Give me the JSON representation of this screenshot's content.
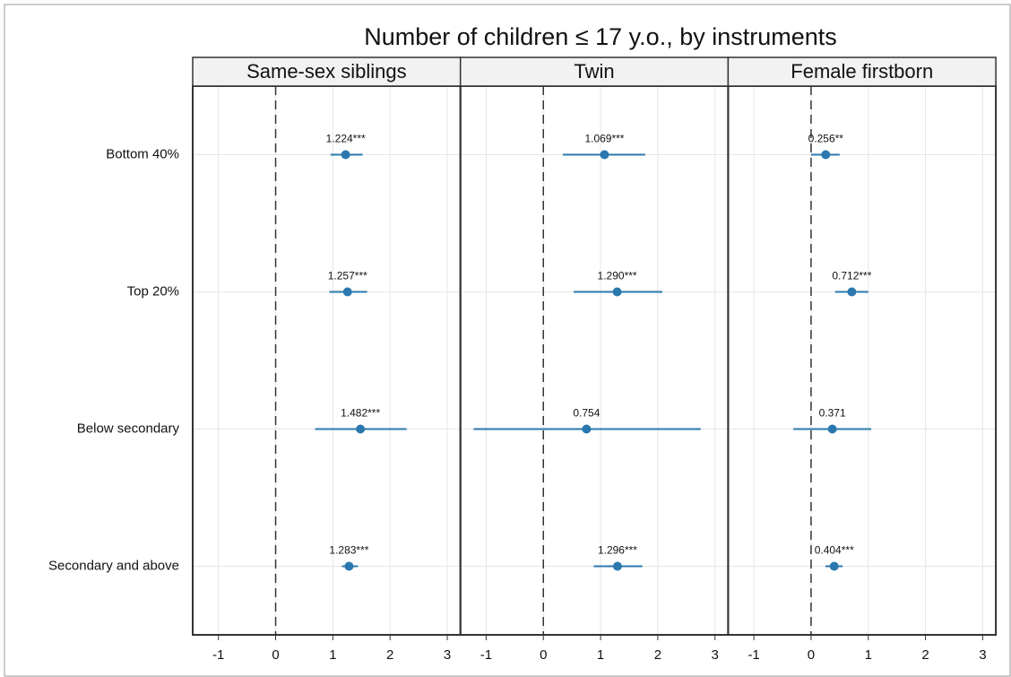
{
  "title": "Number of children ≤ 17 y.o., by instruments",
  "categories": [
    "Bottom 40%",
    "Top 20%",
    "Below secondary",
    "Secondary and above"
  ],
  "chart_data": [
    {
      "type": "errorbar",
      "title": "Same-sex siblings",
      "color": "#2a78ad",
      "values": [
        1.224,
        1.257,
        1.482,
        1.283
      ],
      "value_labels": [
        "1.224***",
        "1.257***",
        "1.482***",
        "1.283***"
      ],
      "ci_low": [
        0.96,
        0.94,
        0.69,
        1.16
      ],
      "ci_high": [
        1.52,
        1.6,
        2.29,
        1.44
      ],
      "xlim": [
        -1.45,
        3.23
      ],
      "xticks": [
        -1,
        0,
        1,
        2,
        3
      ],
      "ref_line": 0,
      "grid": true
    },
    {
      "type": "errorbar",
      "title": "Twin",
      "color": "#2a78ad",
      "values": [
        1.069,
        1.29,
        0.754,
        1.296
      ],
      "value_labels": [
        "1.069***",
        "1.290***",
        "0.754",
        "1.296***"
      ],
      "ci_low": [
        0.34,
        0.53,
        -1.22,
        0.88
      ],
      "ci_high": [
        1.78,
        2.08,
        2.75,
        1.73
      ],
      "xlim": [
        -1.45,
        3.23
      ],
      "xticks": [
        -1,
        0,
        1,
        2,
        3
      ],
      "ref_line": 0,
      "grid": true
    },
    {
      "type": "errorbar",
      "title": "Female firstborn",
      "color": "#2a78ad",
      "values": [
        0.256,
        0.712,
        0.371,
        0.404
      ],
      "value_labels": [
        "0.256**",
        "0.712***",
        "0.371",
        "0.404***"
      ],
      "ci_low": [
        0.0,
        0.42,
        -0.31,
        0.25
      ],
      "ci_high": [
        0.5,
        1.0,
        1.05,
        0.55
      ],
      "xlim": [
        -1.45,
        3.23
      ],
      "xticks": [
        -1,
        0,
        1,
        2,
        3
      ],
      "ref_line": 0,
      "grid": true
    }
  ]
}
